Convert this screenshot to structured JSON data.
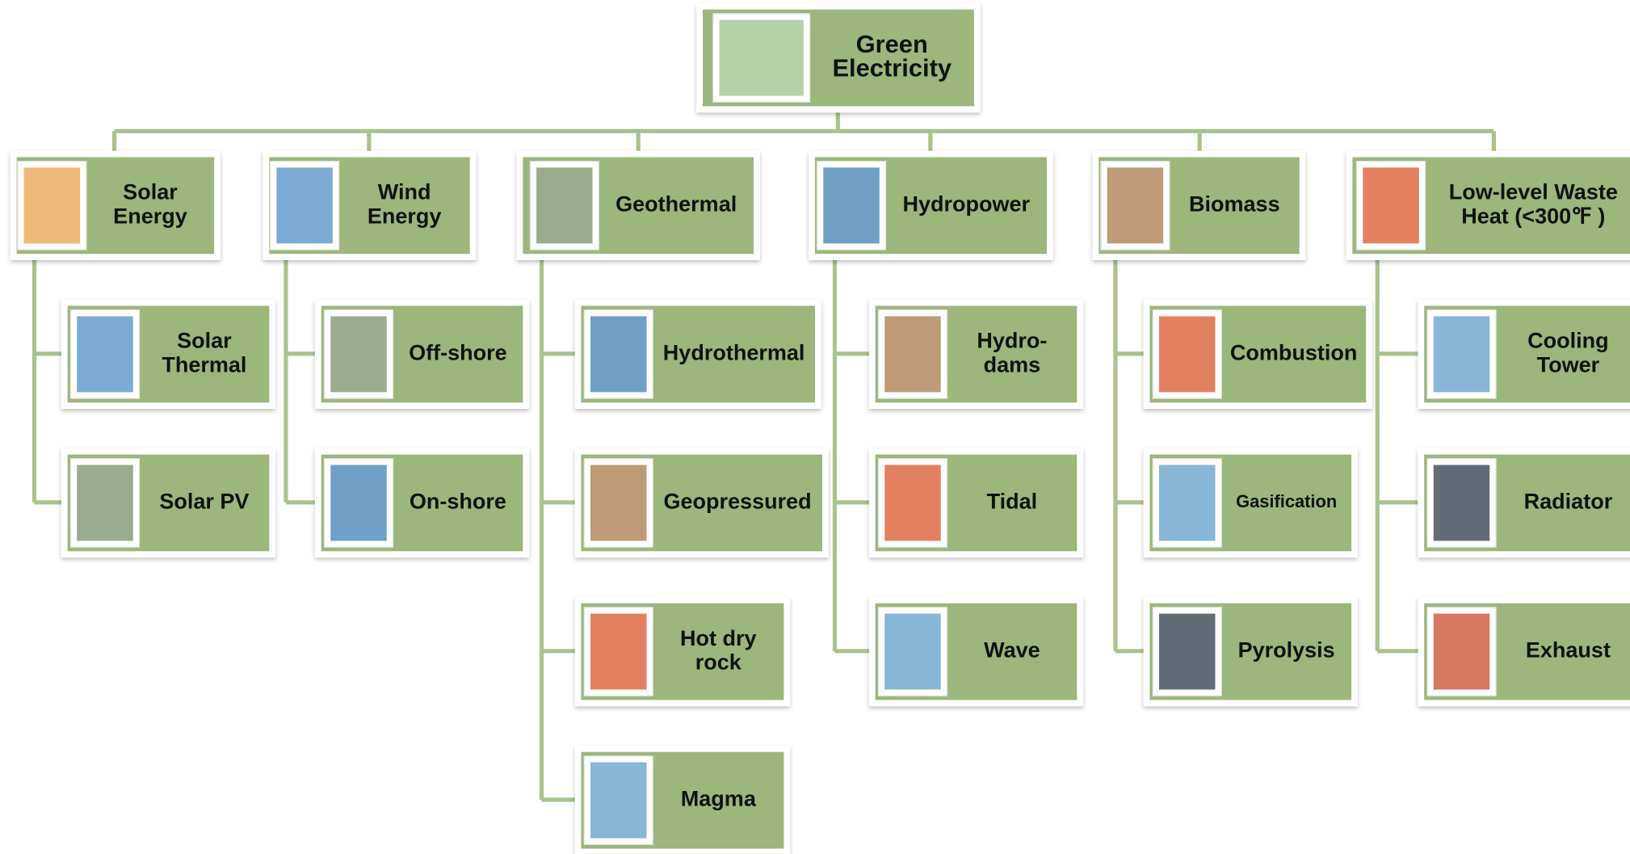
{
  "root": {
    "label": [
      "Green",
      "Electricity"
    ]
  },
  "categories": [
    {
      "label": [
        "Solar",
        "Energy"
      ],
      "children": [
        {
          "label": [
            "Solar",
            "Thermal"
          ]
        },
        {
          "label": [
            "Solar PV"
          ]
        }
      ]
    },
    {
      "label": [
        "Wind",
        "Energy"
      ],
      "children": [
        {
          "label": [
            "Off-shore"
          ]
        },
        {
          "label": [
            "On-shore"
          ]
        }
      ]
    },
    {
      "label": [
        "Geothermal"
      ],
      "children": [
        {
          "label": [
            "Hydrothermal"
          ]
        },
        {
          "label": [
            "Geopressured"
          ]
        },
        {
          "label": [
            "Hot dry",
            "rock"
          ]
        },
        {
          "label": [
            "Magma"
          ]
        }
      ]
    },
    {
      "label": [
        "Hydropower"
      ],
      "children": [
        {
          "label": [
            "Hydro-",
            "dams"
          ]
        },
        {
          "label": [
            "Tidal"
          ]
        },
        {
          "label": [
            "Wave"
          ]
        }
      ]
    },
    {
      "label": [
        "Biomass"
      ],
      "children": [
        {
          "label": [
            "Combustion"
          ]
        },
        {
          "label": [
            "Gasification"
          ]
        },
        {
          "label": [
            "Pyrolysis"
          ]
        }
      ]
    },
    {
      "label": [
        "Low-level Waste",
        "Heat (<300℉ )"
      ],
      "children": [
        {
          "label": [
            "Cooling",
            "Tower"
          ]
        },
        {
          "label": [
            "Radiator"
          ]
        },
        {
          "label": [
            "Exhaust"
          ]
        }
      ]
    }
  ]
}
